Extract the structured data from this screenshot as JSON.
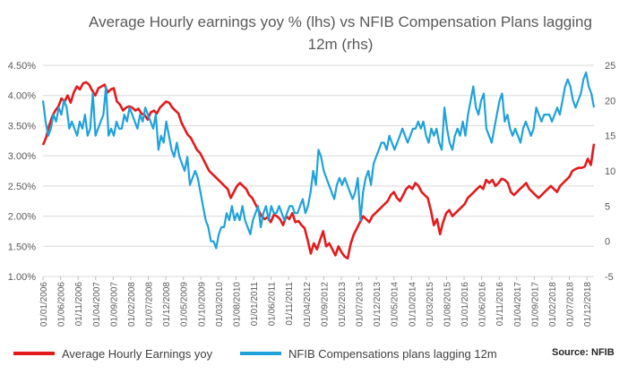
{
  "chart_data": {
    "type": "line",
    "title": "Average Hourly earnings yoy % (lhs) vs NFIB Compensation Plans lagging 12m (rhs)",
    "title_lines": [
      "Average Hourly earnings yoy % (lhs) vs NFIB Compensation Plans lagging",
      "12m (rhs)"
    ],
    "source": "Source: NFIB",
    "grid": true,
    "legend_position": "bottom",
    "y_left": {
      "ylim": [
        1.0,
        4.5
      ],
      "ticks": [
        1.0,
        1.5,
        2.0,
        2.5,
        3.0,
        3.5,
        4.0,
        4.5
      ],
      "tick_labels": [
        "1.00%",
        "1.50%",
        "2.00%",
        "2.50%",
        "3.00%",
        "3.50%",
        "4.00%",
        "4.50%"
      ]
    },
    "y_right": {
      "ylim": [
        -5,
        25
      ],
      "ticks": [
        -5,
        0,
        5,
        10,
        15,
        20,
        25
      ],
      "tick_labels": [
        "-5",
        "0",
        "5",
        "10",
        "15",
        "20",
        "25"
      ]
    },
    "x_tick_labels": [
      "01/01/2006",
      "01/06/2006",
      "01/11/2006",
      "01/04/2007",
      "01/09/2007",
      "01/02/2008",
      "01/07/2008",
      "01/12/2008",
      "01/05/2009",
      "01/10/2009",
      "01/03/2010",
      "01/08/2010",
      "01/01/2011",
      "01/06/2011",
      "01/11/2011",
      "01/04/2012",
      "01/09/2012",
      "01/02/2013",
      "01/07/2013",
      "01/12/2013",
      "01/05/2014",
      "01/10/2014",
      "01/03/2015",
      "01/08/2015",
      "01/01/2016",
      "01/06/2016",
      "01/11/2016",
      "01/04/2017",
      "01/09/2017",
      "01/02/2018",
      "01/07/2018",
      "01/12/2018"
    ],
    "series": [
      {
        "name": "Average Hourly Earnings yoy",
        "axis": "left",
        "color": "#e31a1c",
        "start": "2006-01",
        "values": [
          3.18,
          3.3,
          3.5,
          3.65,
          3.75,
          3.82,
          3.95,
          3.9,
          4.0,
          3.88,
          4.05,
          4.15,
          4.1,
          4.2,
          4.22,
          4.18,
          4.08,
          4.0,
          4.12,
          4.15,
          4.18,
          4.05,
          4.1,
          4.12,
          3.9,
          3.85,
          3.75,
          3.8,
          3.82,
          3.8,
          3.75,
          3.78,
          3.7,
          3.68,
          3.6,
          3.72,
          3.75,
          3.7,
          3.8,
          3.85,
          3.9,
          3.88,
          3.8,
          3.75,
          3.7,
          3.55,
          3.45,
          3.35,
          3.3,
          3.2,
          3.1,
          3.05,
          2.95,
          2.85,
          2.75,
          2.7,
          2.65,
          2.6,
          2.55,
          2.5,
          2.45,
          2.3,
          2.4,
          2.5,
          2.55,
          2.5,
          2.45,
          2.35,
          2.3,
          2.2,
          2.1,
          2.0,
          1.95,
          1.98,
          1.9,
          2.02,
          2.0,
          1.95,
          1.85,
          2.0,
          1.95,
          2.05,
          1.9,
          1.92,
          1.85,
          1.8,
          1.6,
          1.38,
          1.55,
          1.45,
          1.6,
          1.75,
          1.5,
          1.55,
          1.45,
          1.35,
          1.5,
          1.4,
          1.33,
          1.3,
          1.55,
          1.7,
          1.8,
          1.9,
          2.0,
          1.95,
          1.9,
          2.0,
          2.05,
          2.1,
          2.15,
          2.2,
          2.25,
          2.35,
          2.4,
          2.3,
          2.25,
          2.35,
          2.45,
          2.5,
          2.45,
          2.55,
          2.5,
          2.4,
          2.35,
          2.3,
          2.1,
          1.85,
          1.95,
          1.7,
          1.9,
          2.05,
          2.1,
          2.0,
          2.05,
          2.1,
          2.15,
          2.2,
          2.3,
          2.35,
          2.4,
          2.45,
          2.5,
          2.45,
          2.6,
          2.55,
          2.6,
          2.5,
          2.55,
          2.62,
          2.6,
          2.55,
          2.4,
          2.35,
          2.4,
          2.45,
          2.5,
          2.55,
          2.45,
          2.4,
          2.35,
          2.3,
          2.35,
          2.4,
          2.45,
          2.5,
          2.45,
          2.4,
          2.5,
          2.55,
          2.6,
          2.65,
          2.75,
          2.78,
          2.8,
          2.8,
          2.82,
          2.95,
          2.85,
          3.2
        ]
      },
      {
        "name": "NFIB Compensations plans lagging 12m",
        "axis": "right",
        "color": "#1fa2d9",
        "start": "2006-01",
        "values": [
          20,
          17,
          15,
          16,
          18,
          17,
          19,
          18,
          20,
          19,
          16,
          17,
          16,
          15,
          17,
          16,
          18,
          15,
          16,
          21,
          15,
          16,
          17,
          18,
          22,
          15,
          16,
          15,
          17,
          16,
          16,
          18,
          17,
          19,
          18,
          17,
          16,
          18,
          17,
          19,
          18,
          17,
          16,
          18,
          13,
          15,
          14,
          17,
          15,
          13,
          12,
          14,
          12,
          11,
          10,
          12,
          8,
          9,
          10,
          9,
          7,
          5,
          3,
          2,
          0,
          0,
          -1,
          1,
          2,
          2,
          4,
          3,
          5,
          3,
          4,
          3,
          5,
          3,
          2,
          1,
          3,
          4,
          5,
          2,
          4,
          5,
          3,
          5,
          4,
          4,
          5,
          4,
          3,
          4,
          5,
          5,
          4,
          4,
          5,
          6,
          4,
          5,
          7,
          10,
          8,
          13,
          12,
          10,
          9,
          8,
          7,
          6,
          8,
          9,
          8,
          9,
          8,
          7,
          6,
          7,
          9,
          3,
          7,
          9,
          10,
          8,
          11,
          12,
          13,
          14,
          14,
          13,
          15,
          14,
          13,
          14,
          15,
          16,
          15,
          14,
          15,
          16,
          16,
          17,
          16,
          17,
          15,
          14,
          16,
          15,
          16,
          14,
          13,
          19,
          16,
          14,
          13,
          15,
          16,
          15,
          17,
          15,
          18,
          20,
          22,
          19,
          18,
          20,
          21,
          16,
          15,
          14,
          16,
          18,
          20,
          21,
          17,
          18,
          16,
          15,
          16,
          15,
          14,
          16,
          17,
          16,
          15,
          16,
          19,
          18,
          17,
          18,
          18,
          18,
          17,
          18,
          19,
          18,
          20,
          22,
          23,
          22,
          20,
          19,
          20,
          21,
          23,
          24,
          22,
          21,
          19
        ]
      }
    ]
  }
}
